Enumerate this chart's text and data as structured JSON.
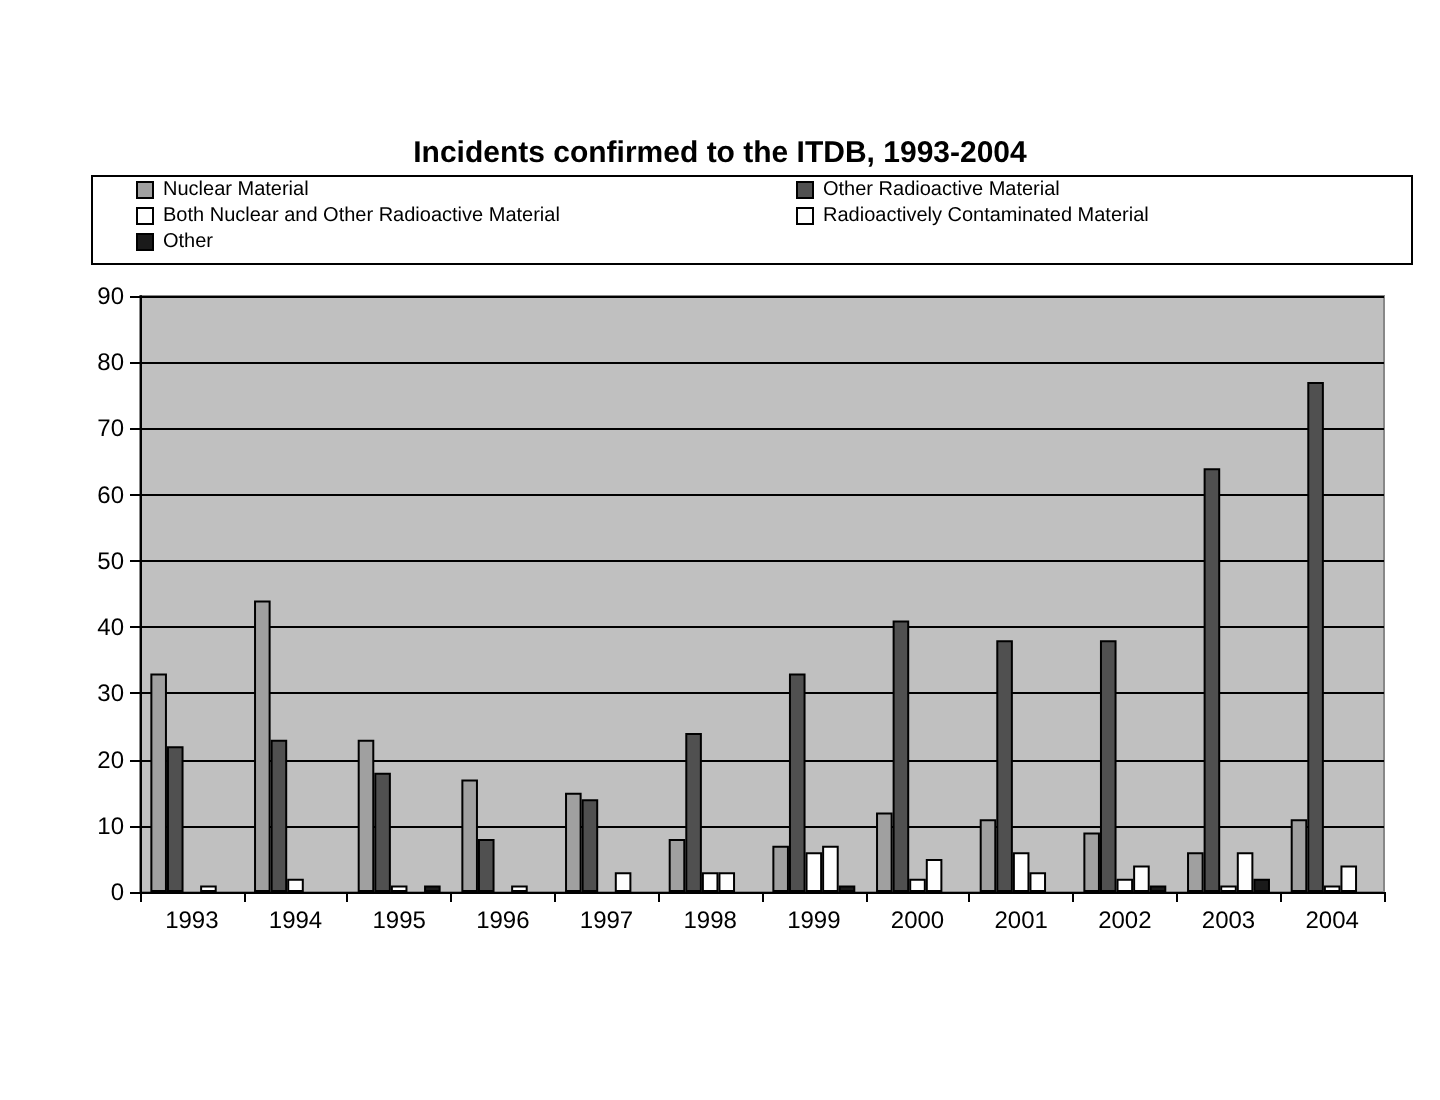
{
  "chart_data": {
    "type": "bar",
    "title": "Incidents confirmed to the ITDB, 1993-2004",
    "categories": [
      "1993",
      "1994",
      "1995",
      "1996",
      "1997",
      "1998",
      "1999",
      "2000",
      "2001",
      "2002",
      "2003",
      "2004"
    ],
    "series": [
      {
        "name": "Nuclear Material",
        "color": "#a0a0a0",
        "values": [
          33,
          44,
          23,
          17,
          15,
          8,
          7,
          12,
          11,
          9,
          6,
          11
        ]
      },
      {
        "name": "Other Radioactive Material",
        "color": "#505050",
        "values": [
          22,
          23,
          18,
          8,
          14,
          24,
          33,
          41,
          38,
          38,
          64,
          77
        ]
      },
      {
        "name": "Both Nuclear and Other Radioactive Material",
        "color": "#ffffff",
        "values": [
          0,
          2,
          1,
          0,
          0,
          3,
          6,
          2,
          6,
          2,
          1,
          1
        ]
      },
      {
        "name": "Radioactively Contaminated Material",
        "color": "#fefefe",
        "values": [
          1,
          0,
          0,
          1,
          3,
          3,
          7,
          5,
          3,
          4,
          6,
          4
        ]
      },
      {
        "name": "Other",
        "color": "#1a1a1a",
        "values": [
          0,
          0,
          1,
          0,
          0,
          0,
          1,
          0,
          0,
          1,
          2,
          0
        ]
      }
    ],
    "ylim": [
      0,
      90
    ],
    "yticks": [
      0,
      10,
      20,
      30,
      40,
      50,
      60,
      70,
      80,
      90
    ],
    "grid": "y",
    "legend": "top"
  }
}
